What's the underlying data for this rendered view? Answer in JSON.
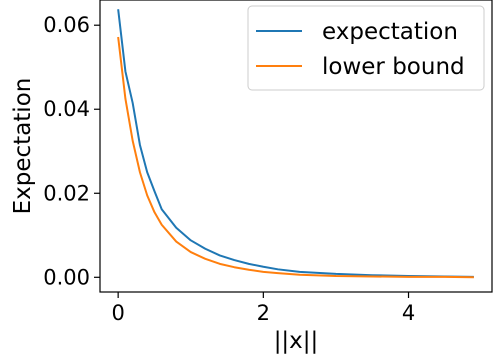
{
  "chart_data": {
    "type": "line",
    "xlabel": "||x||",
    "ylabel": "Expectation",
    "xlim": [
      -0.25,
      5.15
    ],
    "ylim": [
      -0.0035,
      0.066
    ],
    "xticks": [
      0,
      2,
      4
    ],
    "xtick_labels": [
      "0",
      "2",
      "4"
    ],
    "yticks": [
      0.0,
      0.02,
      0.04,
      0.06
    ],
    "ytick_labels": [
      "0.00",
      "0.02",
      "0.04",
      "0.06"
    ],
    "grid": false,
    "legend_position": "top-right",
    "series": [
      {
        "name": "expectation",
        "color": "#1f77b4",
        "x": [
          0,
          0.1,
          0.2,
          0.3,
          0.4,
          0.5,
          0.6,
          0.8,
          1.0,
          1.2,
          1.4,
          1.6,
          1.8,
          2.0,
          2.2,
          2.5,
          3.0,
          3.5,
          4.0,
          4.5,
          4.9
        ],
        "y": [
          0.0638,
          0.049,
          0.0415,
          0.0315,
          0.025,
          0.0205,
          0.0162,
          0.0118,
          0.0088,
          0.0068,
          0.0052,
          0.0041,
          0.0032,
          0.0025,
          0.0019,
          0.0013,
          0.0008,
          0.0005,
          0.0003,
          0.0002,
          0.0001
        ]
      },
      {
        "name": "lower bound",
        "color": "#ff7f0e",
        "x": [
          0,
          0.1,
          0.2,
          0.3,
          0.4,
          0.5,
          0.6,
          0.8,
          1.0,
          1.2,
          1.4,
          1.6,
          1.8,
          2.0,
          2.2,
          2.5,
          3.0,
          3.5,
          4.0,
          4.5,
          4.9
        ],
        "y": [
          0.0572,
          0.0425,
          0.0325,
          0.025,
          0.0195,
          0.0155,
          0.0125,
          0.0085,
          0.006,
          0.0044,
          0.0032,
          0.0024,
          0.0018,
          0.0013,
          0.001,
          0.0006,
          0.0003,
          0.0002,
          0.0001,
          0.0001,
          0.0
        ]
      }
    ]
  }
}
